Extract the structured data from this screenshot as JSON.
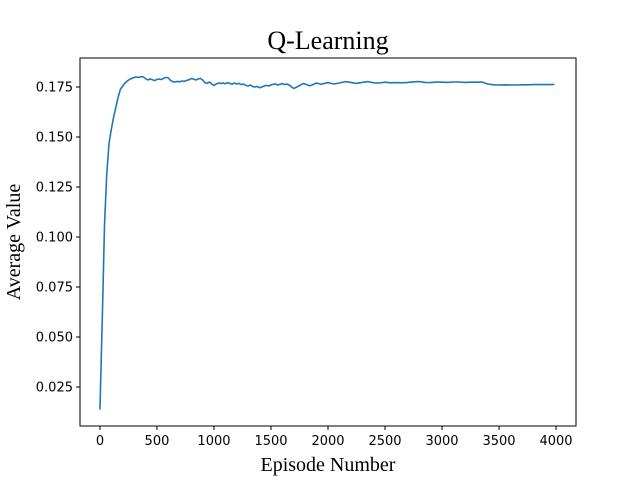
{
  "chart_data": {
    "type": "line",
    "title": "Q-Learning",
    "xlabel": "Episode Number",
    "ylabel": "Average Value",
    "xlim": [
      -175,
      4175
    ],
    "ylim": [
      0.0055,
      0.1895
    ],
    "xticks": [
      0,
      500,
      1000,
      1500,
      2000,
      2500,
      3000,
      3500,
      4000
    ],
    "yticks": [
      0.025,
      0.05,
      0.075,
      0.1,
      0.125,
      0.15,
      0.175
    ],
    "xtick_labels": [
      "0",
      "500",
      "1000",
      "1500",
      "2000",
      "2500",
      "3000",
      "3500",
      "4000"
    ],
    "ytick_labels": [
      "0.025",
      "0.050",
      "0.075",
      "0.100",
      "0.125",
      "0.150",
      "0.175"
    ],
    "grid": false,
    "legend": null,
    "series": [
      {
        "color": "#1f77b4",
        "x": [
          0,
          20,
          40,
          60,
          80,
          100,
          120,
          140,
          160,
          180,
          200,
          220,
          240,
          260,
          280,
          300,
          320,
          340,
          360,
          380,
          400,
          420,
          440,
          460,
          480,
          500,
          520,
          540,
          560,
          580,
          600,
          620,
          640,
          660,
          680,
          700,
          720,
          740,
          760,
          780,
          800,
          820,
          840,
          860,
          880,
          900,
          920,
          940,
          960,
          980,
          1000,
          1020,
          1040,
          1060,
          1080,
          1100,
          1120,
          1140,
          1160,
          1180,
          1200,
          1220,
          1240,
          1260,
          1280,
          1300,
          1320,
          1340,
          1360,
          1380,
          1400,
          1420,
          1440,
          1460,
          1480,
          1500,
          1520,
          1540,
          1560,
          1580,
          1600,
          1620,
          1640,
          1660,
          1680,
          1700,
          1720,
          1740,
          1760,
          1780,
          1800,
          1820,
          1840,
          1860,
          1880,
          1900,
          1920,
          1940,
          1960,
          1980,
          2000,
          2050,
          2100,
          2150,
          2200,
          2250,
          2300,
          2350,
          2400,
          2450,
          2500,
          2550,
          2600,
          2650,
          2700,
          2750,
          2800,
          2850,
          2900,
          2950,
          3000,
          3050,
          3100,
          3150,
          3200,
          3250,
          3300,
          3350,
          3400,
          3450,
          3500,
          3550,
          3600,
          3650,
          3700,
          3750,
          3800,
          3850,
          3900,
          3950,
          3980
        ],
        "values": [
          0.014,
          0.058,
          0.106,
          0.132,
          0.147,
          0.154,
          0.16,
          0.165,
          0.17,
          0.174,
          0.1755,
          0.177,
          0.178,
          0.1788,
          0.1793,
          0.1798,
          0.18,
          0.1798,
          0.1802,
          0.18,
          0.1792,
          0.1785,
          0.179,
          0.1786,
          0.1782,
          0.1788,
          0.179,
          0.1787,
          0.1794,
          0.1798,
          0.1795,
          0.1782,
          0.1776,
          0.1775,
          0.1778,
          0.1776,
          0.178,
          0.1778,
          0.1783,
          0.1786,
          0.1792,
          0.179,
          0.1785,
          0.179,
          0.1793,
          0.1785,
          0.1772,
          0.1768,
          0.1775,
          0.1765,
          0.1758,
          0.1765,
          0.177,
          0.1768,
          0.177,
          0.1766,
          0.1772,
          0.1768,
          0.1764,
          0.177,
          0.1765,
          0.1768,
          0.1762,
          0.1765,
          0.1758,
          0.1755,
          0.176,
          0.1752,
          0.175,
          0.1753,
          0.1746,
          0.175,
          0.1755,
          0.1758,
          0.1755,
          0.176,
          0.1764,
          0.1765,
          0.176,
          0.1764,
          0.1767,
          0.1762,
          0.1765,
          0.176,
          0.175,
          0.1743,
          0.1748,
          0.1754,
          0.176,
          0.1767,
          0.1765,
          0.176,
          0.1756,
          0.176,
          0.1765,
          0.177,
          0.1767,
          0.1763,
          0.1767,
          0.1769,
          0.1772,
          0.1765,
          0.177,
          0.1777,
          0.1773,
          0.1768,
          0.1773,
          0.1777,
          0.1771,
          0.177,
          0.1774,
          0.1771,
          0.1772,
          0.1771,
          0.1773,
          0.1776,
          0.1777,
          0.1773,
          0.1772,
          0.1775,
          0.1774,
          0.1773,
          0.1775,
          0.1775,
          0.1773,
          0.1774,
          0.1774,
          0.1775,
          0.1765,
          0.1761,
          0.176,
          0.1761,
          0.176,
          0.176,
          0.1761,
          0.1761,
          0.1762,
          0.1762,
          0.1762,
          0.1762,
          0.1763
        ]
      }
    ]
  }
}
